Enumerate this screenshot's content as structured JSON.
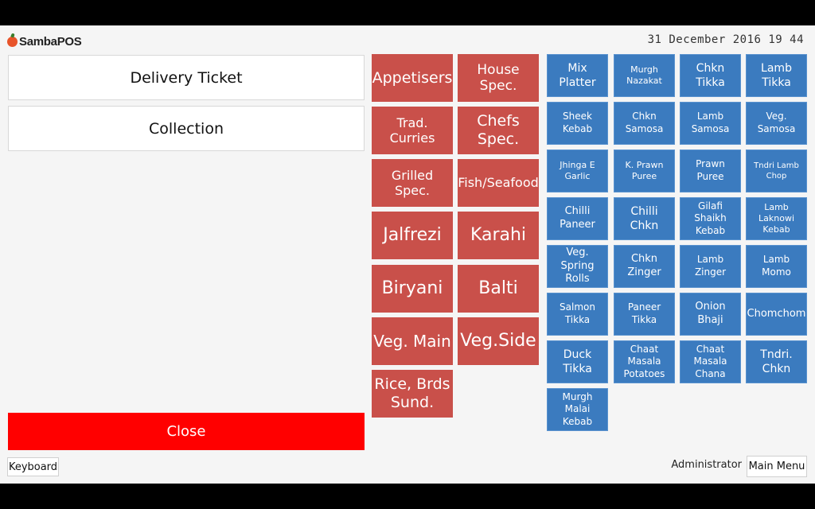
{
  "app": {
    "logo_text": "SambaPOS"
  },
  "header": {
    "datetime": "31 December 2016 19 44"
  },
  "ticket_types": [
    {
      "label": "Delivery Ticket"
    },
    {
      "label": "Collection"
    }
  ],
  "actions": {
    "close_label": "Close",
    "keyboard_label": "Keyboard",
    "main_menu_label": "Main Menu"
  },
  "user": {
    "name": "Administrator"
  },
  "categories": [
    {
      "label": "Appetisers"
    },
    {
      "label": "House Spec."
    },
    {
      "label": "Trad. Curries"
    },
    {
      "label": "Chefs Spec."
    },
    {
      "label": "Grilled Spec."
    },
    {
      "label": "Fish/Seafood"
    },
    {
      "label": "Jalfrezi"
    },
    {
      "label": "Karahi"
    },
    {
      "label": "Biryani"
    },
    {
      "label": "Balti"
    },
    {
      "label": "Veg. Main"
    },
    {
      "label": "Veg.Side"
    },
    {
      "label": "Rice, Brds Sund."
    }
  ],
  "products": [
    {
      "label": "Mix Platter"
    },
    {
      "label": "Murgh Nazakat"
    },
    {
      "label": "Chkn Tikka"
    },
    {
      "label": "Lamb Tikka"
    },
    {
      "label": "Sheek Kebab"
    },
    {
      "label": "Chkn Samosa"
    },
    {
      "label": "Lamb Samosa"
    },
    {
      "label": "Veg. Samosa"
    },
    {
      "label": "Jhinga E Garlic"
    },
    {
      "label": "K. Prawn Puree"
    },
    {
      "label": "Prawn Puree"
    },
    {
      "label": "Tndri Lamb Chop"
    },
    {
      "label": "Chilli Paneer"
    },
    {
      "label": "Chilli Chkn"
    },
    {
      "label": "Gilafi Shaikh Kebab"
    },
    {
      "label": "Lamb Laknowi Kebab"
    },
    {
      "label": "Veg. Spring Rolls"
    },
    {
      "label": "Chkn Zinger"
    },
    {
      "label": "Lamb Zinger"
    },
    {
      "label": "Lamb Momo"
    },
    {
      "label": "Salmon Tikka"
    },
    {
      "label": "Paneer Tikka"
    },
    {
      "label": "Onion Bhaji"
    },
    {
      "label": "Chomchom"
    },
    {
      "label": "Duck Tikka"
    },
    {
      "label": "Chaat Masala Potatoes"
    },
    {
      "label": "Chaat Masala Chana"
    },
    {
      "label": "Tndri. Chkn"
    },
    {
      "label": "Murgh Malai Kebab"
    }
  ],
  "colors": {
    "category": "#c9504a",
    "product": "#3b7bbf",
    "close": "#ff0000"
  }
}
